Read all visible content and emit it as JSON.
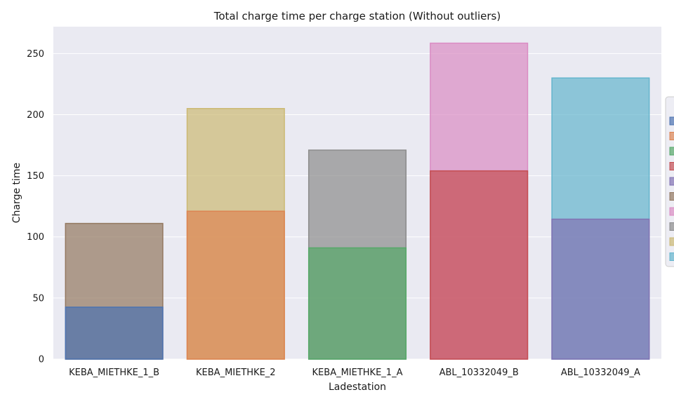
{
  "chart_data": {
    "type": "bar",
    "title": "Total charge time per charge station (Without outliers)",
    "xlabel": "Ladestation",
    "ylabel": "Charge time",
    "ylim": [
      0,
      272
    ],
    "yticks": [
      0,
      50,
      100,
      150,
      200,
      250
    ],
    "grid": true,
    "legend_position": "right",
    "categories": [
      "KEBA_MIETHKE_1_B",
      "KEBA_MIETHKE_2",
      "KEBA_MIETHKE_1_A",
      "ABL_10332049_B",
      "ABL_10332049_A"
    ],
    "series": [
      {
        "color": "#4c72b0",
        "values": [
          42.5,
          null,
          null,
          null,
          null
        ]
      },
      {
        "color": "#dd8452",
        "values": [
          null,
          121,
          null,
          null,
          null
        ]
      },
      {
        "color": "#55a868",
        "values": [
          null,
          null,
          91,
          null,
          null
        ]
      },
      {
        "color": "#c44e52",
        "values": [
          null,
          null,
          null,
          154,
          null
        ]
      },
      {
        "color": "#8172b3",
        "values": [
          null,
          null,
          null,
          null,
          114.5
        ]
      },
      {
        "color": "#937860",
        "values": [
          111,
          null,
          null,
          null,
          null
        ]
      },
      {
        "color": "#da8bc3",
        "values": [
          null,
          null,
          null,
          258.5,
          null
        ]
      },
      {
        "color": "#8c8c8c",
        "values": [
          null,
          null,
          171,
          null,
          null
        ]
      },
      {
        "color": "#ccb974",
        "values": [
          null,
          205,
          null,
          null,
          null
        ]
      },
      {
        "color": "#64b5cd",
        "values": [
          null,
          null,
          null,
          null,
          230
        ]
      }
    ]
  }
}
